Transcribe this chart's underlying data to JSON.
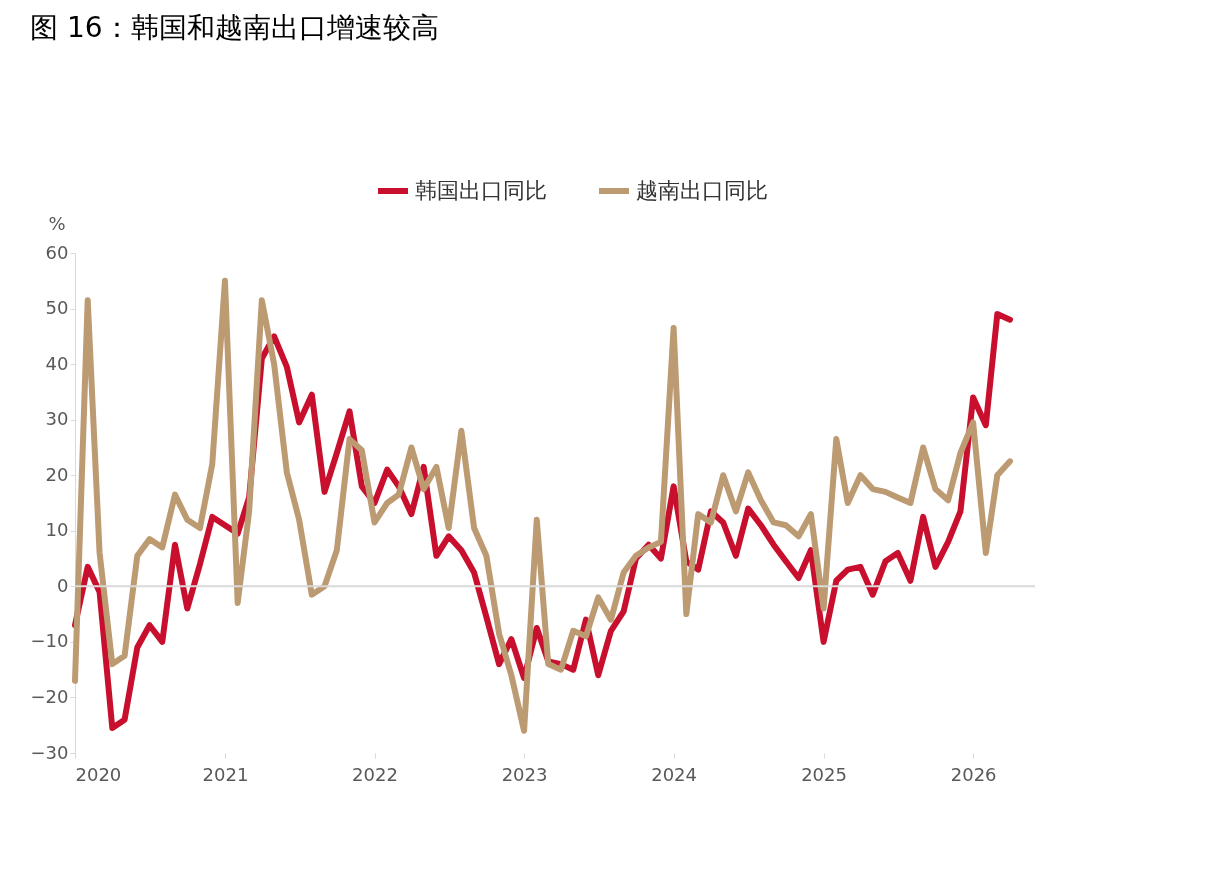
{
  "chart_data": {
    "type": "line",
    "title": "图 16：韩国和越南出口增速较高",
    "ylabel": "%",
    "x": [
      "2020-01",
      "2020-02",
      "2020-03",
      "2020-04",
      "2020-05",
      "2020-06",
      "2020-07",
      "2020-08",
      "2020-09",
      "2020-10",
      "2020-11",
      "2020-12",
      "2021-01",
      "2021-02",
      "2021-03",
      "2021-04",
      "2021-05",
      "2021-06",
      "2021-07",
      "2021-08",
      "2021-09",
      "2021-10",
      "2021-11",
      "2021-12",
      "2022-01",
      "2022-02",
      "2022-03",
      "2022-04",
      "2022-05",
      "2022-06",
      "2022-07",
      "2022-08",
      "2022-09",
      "2022-10",
      "2022-11",
      "2022-12",
      "2023-01",
      "2023-02",
      "2023-03",
      "2023-04",
      "2023-05",
      "2023-06",
      "2023-07",
      "2023-08",
      "2023-09",
      "2023-10",
      "2023-11",
      "2023-12",
      "2024-01",
      "2024-02",
      "2024-03",
      "2024-04",
      "2024-05",
      "2024-06",
      "2024-07",
      "2024-08",
      "2024-09",
      "2024-10",
      "2024-11",
      "2024-12",
      "2025-01",
      "2025-02",
      "2025-03",
      "2025-04",
      "2025-05",
      "2025-06",
      "2025-07",
      "2025-08",
      "2025-09",
      "2025-10",
      "2025-11",
      "2025-12",
      "2026-01",
      "2026-02",
      "2026-03",
      "2026-04"
    ],
    "series": [
      {
        "name": "韩国出口同比",
        "color": "#c8102e",
        "values": [
          -7,
          3.5,
          -1,
          -25.5,
          -24,
          -11,
          -7,
          -10,
          7.5,
          -4,
          4,
          12.5,
          11,
          9.5,
          16,
          41,
          45,
          39.5,
          29.5,
          34.5,
          17,
          24,
          31.5,
          18,
          15,
          21,
          18,
          13,
          21.5,
          5.5,
          9,
          6.5,
          2.5,
          -5.5,
          -14,
          -9.5,
          -16.5,
          -7.5,
          -13.5,
          -14,
          -15,
          -6,
          -16,
          -8,
          -4.5,
          5,
          7.5,
          5,
          18,
          4.5,
          3,
          13.5,
          11.5,
          5.5,
          14,
          11,
          7.5,
          4.5,
          1.5,
          6.5,
          -10,
          1,
          3,
          3.5,
          -1.5,
          4.5,
          6,
          1,
          12.5,
          3.5,
          8,
          13.5,
          34,
          29,
          49,
          48
        ]
      },
      {
        "name": "越南出口同比",
        "color": "#bc9a72",
        "values": [
          -17,
          51.5,
          6,
          -14,
          -12.5,
          5.5,
          8.5,
          7,
          16.5,
          12,
          10.5,
          22,
          55,
          -3,
          13.5,
          51.5,
          40,
          20.5,
          12,
          -1.5,
          0,
          6.5,
          26.5,
          24.5,
          11.5,
          15,
          16.5,
          25,
          17.5,
          21.5,
          10.5,
          28,
          10.5,
          5.5,
          -8.5,
          -16,
          -26,
          12,
          -14,
          -15,
          -8,
          -9,
          -2,
          -6,
          2.5,
          5.5,
          7,
          8,
          46.5,
          -5,
          13,
          11.5,
          20,
          13.5,
          20.5,
          15.5,
          11.5,
          11,
          9,
          13,
          -4,
          26.5,
          15,
          20,
          17.5,
          17,
          16,
          15,
          25,
          17.5,
          15.5,
          24,
          29.5,
          6,
          20,
          22.5
        ]
      }
    ],
    "xlim": [
      "2020-01",
      "2026-06"
    ],
    "xticks": [
      "2020",
      "2021",
      "2022",
      "2023",
      "2024",
      "2025",
      "2026"
    ],
    "ylim": [
      -30,
      60
    ],
    "yticks": [
      -30,
      -20,
      -10,
      0,
      10,
      20,
      30,
      40,
      50,
      60
    ],
    "ref_lines": [
      {
        "axis": "y",
        "value": 0,
        "color": "#d9d9d9"
      }
    ],
    "legend": "top",
    "grid": false,
    "line_style": "solid"
  }
}
